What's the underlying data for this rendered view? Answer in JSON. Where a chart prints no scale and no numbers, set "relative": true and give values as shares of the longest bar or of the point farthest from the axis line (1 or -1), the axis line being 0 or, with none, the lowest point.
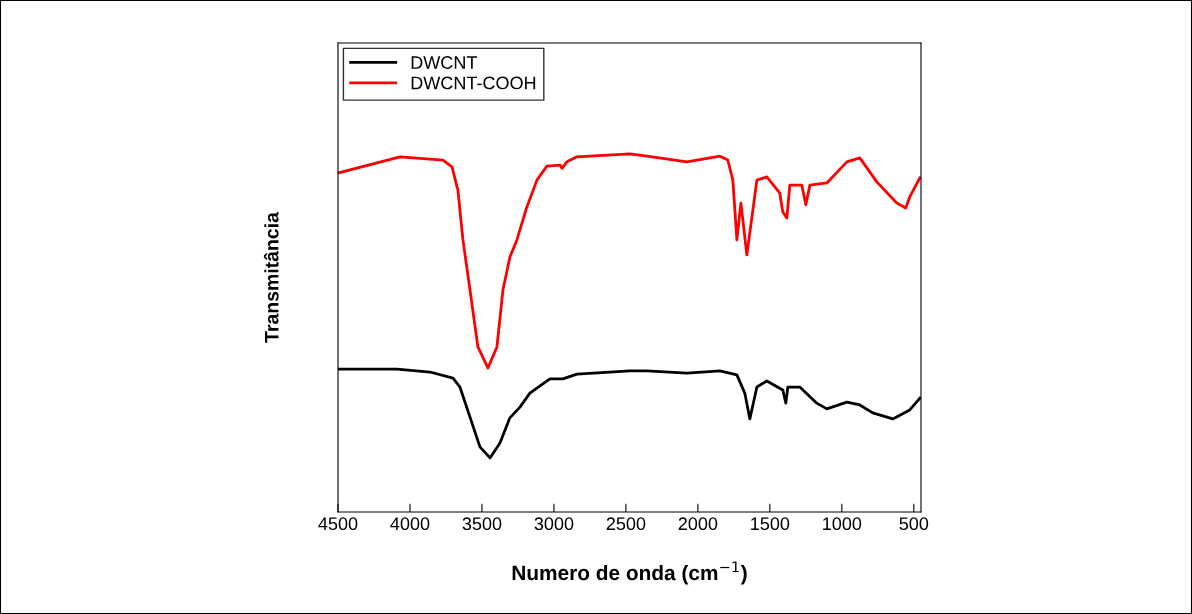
{
  "chart_data": {
    "type": "line",
    "relative": true,
    "xlabel": "Numero de onda (cm$^{−1}$)",
    "ylabel": "Transmitância",
    "xlim": [
      4500,
      450
    ],
    "xticks": [
      4500,
      4000,
      3500,
      3000,
      2500,
      2000,
      1500,
      1000,
      500
    ],
    "legend": "top left",
    "grid": false,
    "series": [
      {
        "name": "DWCNT",
        "color": "#000000",
        "x": [
          4500,
          4090,
          3861,
          3701,
          3653,
          3583,
          3514,
          3444,
          3375,
          3306,
          3236,
          3167,
          3028,
          2938,
          2840,
          2472,
          2354,
          2076,
          1847,
          1729,
          1674,
          1639,
          1590,
          1521,
          1410,
          1389,
          1375,
          1292,
          1174,
          1104,
          965,
          875,
          785,
          646,
          528,
          458
        ],
        "values": [
          0.399,
          0.399,
          0.391,
          0.374,
          0.349,
          0.265,
          0.182,
          0.151,
          0.193,
          0.263,
          0.293,
          0.332,
          0.372,
          0.372,
          0.385,
          0.394,
          0.394,
          0.388,
          0.394,
          0.383,
          0.332,
          0.26,
          0.349,
          0.366,
          0.341,
          0.304,
          0.349,
          0.349,
          0.304,
          0.288,
          0.307,
          0.299,
          0.277,
          0.26,
          0.285,
          0.318
        ]
      },
      {
        "name": "DWCNT-COOH",
        "color": "#ff0000",
        "x": [
          4500,
          4069,
          3771,
          3708,
          3667,
          3632,
          3583,
          3528,
          3458,
          3396,
          3354,
          3306,
          3257,
          3188,
          3118,
          3049,
          2958,
          2944,
          2910,
          2840,
          2472,
          2354,
          2076,
          1847,
          1792,
          1757,
          1729,
          1701,
          1660,
          1590,
          1521,
          1431,
          1410,
          1382,
          1361,
          1278,
          1250,
          1222,
          1104,
          965,
          875,
          757,
          618,
          556,
          528,
          458
        ],
        "values": [
          0.947,
          0.992,
          0.983,
          0.964,
          0.899,
          0.76,
          0.62,
          0.461,
          0.402,
          0.461,
          0.62,
          0.712,
          0.76,
          0.852,
          0.927,
          0.966,
          0.969,
          0.96,
          0.978,
          0.992,
          1.0,
          0.994,
          0.978,
          0.994,
          0.983,
          0.927,
          0.76,
          0.863,
          0.718,
          0.927,
          0.936,
          0.891,
          0.838,
          0.821,
          0.913,
          0.913,
          0.858,
          0.913,
          0.919,
          0.978,
          0.989,
          0.922,
          0.863,
          0.849,
          0.88,
          0.933
        ]
      }
    ]
  }
}
